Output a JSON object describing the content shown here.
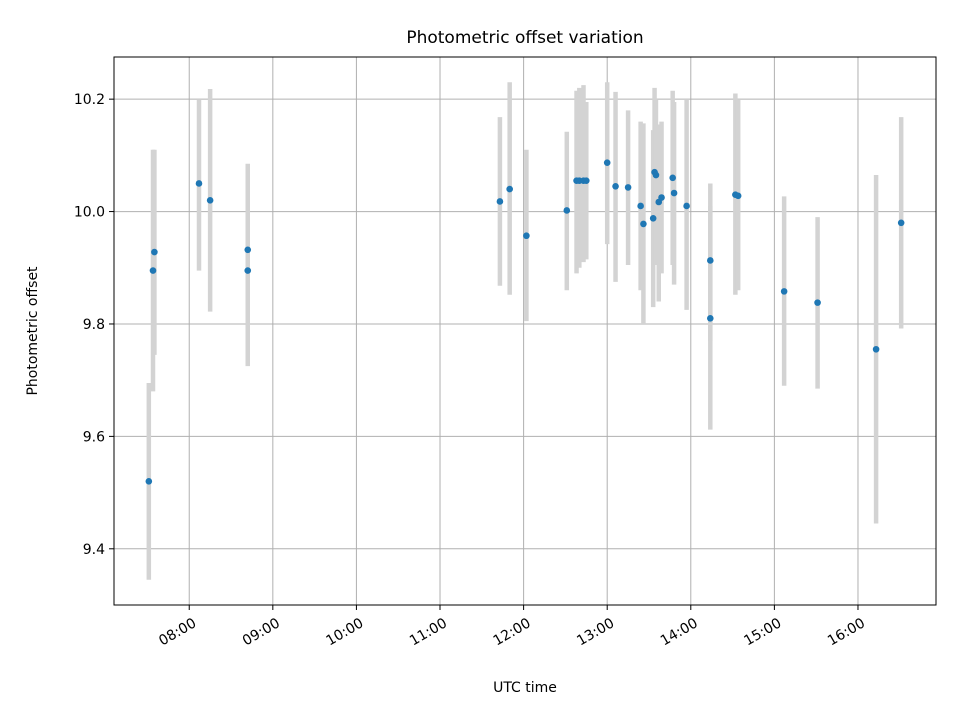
{
  "chart_data": {
    "type": "scatter",
    "title": "Photometric offset variation",
    "xlabel": "UTC time",
    "ylabel": "Photometric offset",
    "x_ticks": [
      "08:00",
      "09:00",
      "10:00",
      "11:00",
      "12:00",
      "13:00",
      "14:00",
      "15:00",
      "16:00"
    ],
    "y_ticks": [
      "9.4",
      "9.6",
      "9.8",
      "10.0",
      "10.2"
    ],
    "xlim": [
      "07:06",
      "16:56"
    ],
    "ylim": [
      9.3,
      10.275
    ],
    "grid": true,
    "legend": "none",
    "colors": {
      "point": "#1f77b4",
      "errorbar": "#d3d3d3",
      "grid": "#b0b0b0"
    },
    "points": [
      {
        "x": "07:31",
        "y": 9.52,
        "lo": 9.345,
        "hi": 9.695
      },
      {
        "x": "07:34",
        "y": 9.895,
        "lo": 9.68,
        "hi": 10.11
      },
      {
        "x": "07:35",
        "y": 9.928,
        "lo": 9.745,
        "hi": 10.11
      },
      {
        "x": "08:07",
        "y": 10.05,
        "lo": 9.895,
        "hi": 10.2
      },
      {
        "x": "08:15",
        "y": 10.02,
        "lo": 9.822,
        "hi": 10.218
      },
      {
        "x": "08:42",
        "y": 9.932,
        "lo": 9.78,
        "hi": 10.085
      },
      {
        "x": "08:42",
        "y": 9.895,
        "lo": 9.725,
        "hi": 10.065
      },
      {
        "x": "11:43",
        "y": 10.018,
        "lo": 9.868,
        "hi": 10.168
      },
      {
        "x": "11:50",
        "y": 10.04,
        "lo": 9.852,
        "hi": 10.23
      },
      {
        "x": "12:02",
        "y": 9.957,
        "lo": 9.805,
        "hi": 10.11
      },
      {
        "x": "12:31",
        "y": 10.002,
        "lo": 9.86,
        "hi": 10.142
      },
      {
        "x": "12:38",
        "y": 10.055,
        "lo": 9.89,
        "hi": 10.215
      },
      {
        "x": "12:40",
        "y": 10.055,
        "lo": 9.9,
        "hi": 10.22
      },
      {
        "x": "12:43",
        "y": 10.055,
        "lo": 9.91,
        "hi": 10.225
      },
      {
        "x": "12:45",
        "y": 10.055,
        "lo": 9.915,
        "hi": 10.195
      },
      {
        "x": "13:00",
        "y": 10.087,
        "lo": 9.942,
        "hi": 10.23
      },
      {
        "x": "13:06",
        "y": 10.045,
        "lo": 9.875,
        "hi": 10.213
      },
      {
        "x": "13:15",
        "y": 10.043,
        "lo": 9.905,
        "hi": 10.18
      },
      {
        "x": "13:24",
        "y": 10.01,
        "lo": 9.86,
        "hi": 10.16
      },
      {
        "x": "13:26",
        "y": 9.978,
        "lo": 9.8,
        "hi": 10.157
      },
      {
        "x": "13:33",
        "y": 9.988,
        "lo": 9.83,
        "hi": 10.145
      },
      {
        "x": "13:34",
        "y": 10.07,
        "lo": 9.92,
        "hi": 10.22
      },
      {
        "x": "13:35",
        "y": 10.065,
        "lo": 9.905,
        "hi": 10.2
      },
      {
        "x": "13:37",
        "y": 10.017,
        "lo": 9.84,
        "hi": 10.155
      },
      {
        "x": "13:39",
        "y": 10.025,
        "lo": 9.89,
        "hi": 10.16
      },
      {
        "x": "13:47",
        "y": 10.06,
        "lo": 9.905,
        "hi": 10.215
      },
      {
        "x": "13:48",
        "y": 10.033,
        "lo": 9.87,
        "hi": 10.195
      },
      {
        "x": "13:57",
        "y": 10.01,
        "lo": 9.825,
        "hi": 10.2
      },
      {
        "x": "14:14",
        "y": 9.913,
        "lo": 9.77,
        "hi": 10.05
      },
      {
        "x": "14:14",
        "y": 9.81,
        "lo": 9.612,
        "hi": 10.01
      },
      {
        "x": "14:32",
        "y": 10.03,
        "lo": 9.852,
        "hi": 10.21
      },
      {
        "x": "14:34",
        "y": 10.028,
        "lo": 9.86,
        "hi": 10.2
      },
      {
        "x": "15:07",
        "y": 9.858,
        "lo": 9.69,
        "hi": 10.027
      },
      {
        "x": "15:31",
        "y": 9.838,
        "lo": 9.685,
        "hi": 9.99
      },
      {
        "x": "16:13",
        "y": 9.755,
        "lo": 9.445,
        "hi": 10.065
      },
      {
        "x": "16:31",
        "y": 9.98,
        "lo": 9.792,
        "hi": 10.168
      }
    ]
  }
}
